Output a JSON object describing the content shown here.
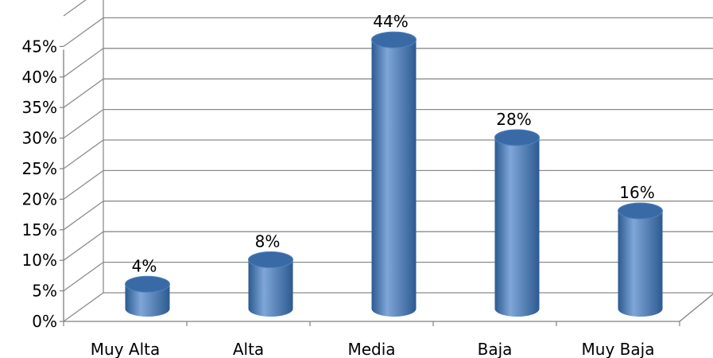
{
  "chart_data": {
    "type": "bar",
    "style": "3d-cylinder",
    "categories": [
      "Muy Alta",
      "Alta",
      "Media",
      "Baja",
      "Muy Baja"
    ],
    "values": [
      4,
      8,
      44,
      28,
      16
    ],
    "data_labels": [
      "4%",
      "8%",
      "44%",
      "28%",
      "16%"
    ],
    "y_ticks": [
      0,
      5,
      10,
      15,
      20,
      25,
      30,
      35,
      40,
      45,
      50
    ],
    "y_tick_labels": [
      "0%",
      "5%",
      "10%",
      "15%",
      "20%",
      "25%",
      "30%",
      "35%",
      "40%",
      "45%",
      ""
    ],
    "ylim": [
      0,
      50
    ],
    "grid": true,
    "legend": "none",
    "colors": {
      "bar_main": "#4f81bd",
      "bar_dark": "#2c5a90",
      "bar_light": "#7fa6d8",
      "bar_top": "#3a6aa6",
      "grid": "#8c8c8c"
    }
  }
}
